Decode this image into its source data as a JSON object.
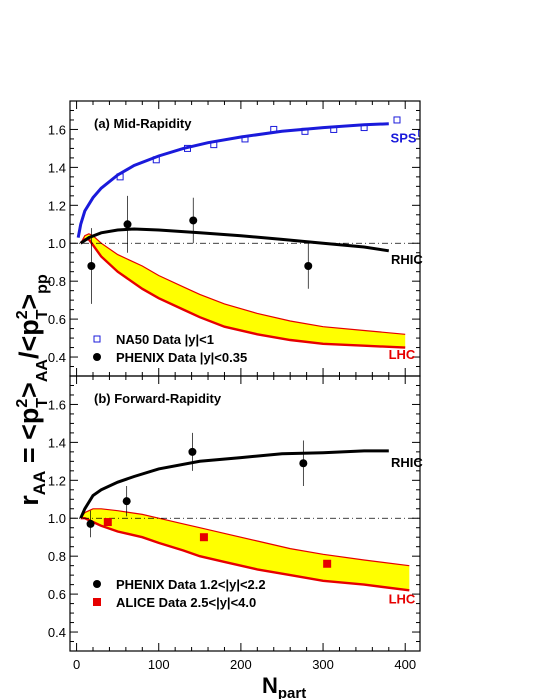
{
  "figure": {
    "y_axis_label": {
      "r": "r",
      "r_sub": "AA",
      "eq": " = <p",
      "sup1": "2",
      "sub1": "T",
      "mid": ">",
      "sub2": "AA",
      "slash": "/<p",
      "sup2": "2",
      "sub3": "T",
      "end": ">",
      "sub4": "pp"
    },
    "x_axis_label": {
      "main": "N",
      "sub": "part"
    }
  },
  "chart_data": [
    {
      "type": "line",
      "title": "(a) Mid-Rapidity",
      "xlim": [
        -8,
        418
      ],
      "ylim": [
        0.3,
        1.75
      ],
      "x_ticks": [
        0,
        100,
        200,
        300,
        400
      ],
      "y_ticks": [
        0.4,
        0.6,
        0.8,
        1.0,
        1.2,
        1.4,
        1.6
      ],
      "y_tick_labels": [
        "0.4",
        "0.6",
        "0.8",
        "1.0",
        "1.2",
        "1.4",
        "1.6"
      ],
      "x_tick_labels": [
        "0",
        "100",
        "200",
        "300",
        "400"
      ],
      "reference_line": 1.0,
      "lines": [
        {
          "name": "SPS",
          "color": "#1a1adb",
          "x": [
            2,
            5,
            10,
            20,
            30,
            50,
            70,
            100,
            130,
            160,
            200,
            250,
            300,
            350,
            380
          ],
          "y": [
            1.03,
            1.1,
            1.17,
            1.24,
            1.29,
            1.36,
            1.41,
            1.46,
            1.5,
            1.53,
            1.56,
            1.59,
            1.61,
            1.625,
            1.63
          ]
        },
        {
          "name": "RHIC",
          "color": "#000000",
          "x": [
            5,
            15,
            30,
            50,
            70,
            100,
            150,
            200,
            250,
            300,
            350,
            380
          ],
          "y": [
            1.0,
            1.03,
            1.055,
            1.07,
            1.075,
            1.07,
            1.055,
            1.04,
            1.02,
            1.0,
            0.98,
            0.96
          ]
        }
      ],
      "band": {
        "name": "LHC",
        "fill": "#ffff00",
        "edge": "#e60000",
        "x": [
          5,
          10,
          15,
          20,
          30,
          50,
          80,
          100,
          130,
          150,
          180,
          220,
          260,
          300,
          350,
          400
        ],
        "upper": [
          1.0,
          1.04,
          1.05,
          1.04,
          1.0,
          0.94,
          0.88,
          0.83,
          0.77,
          0.73,
          0.68,
          0.63,
          0.59,
          0.56,
          0.54,
          0.52
        ],
        "lower": [
          1.0,
          1.02,
          1.02,
          0.99,
          0.93,
          0.85,
          0.76,
          0.71,
          0.65,
          0.61,
          0.56,
          0.52,
          0.49,
          0.47,
          0.46,
          0.45
        ]
      },
      "points": [
        {
          "name": "NA50 Data |y|<1",
          "marker": "open-square",
          "color": "#1a1adb",
          "x": [
            53,
            97,
            135,
            167,
            205,
            240,
            278,
            313,
            350,
            390,
            420
          ],
          "y": [
            1.35,
            1.44,
            1.5,
            1.52,
            1.55,
            1.6,
            1.59,
            1.6,
            1.61,
            1.65,
            1.58
          ]
        },
        {
          "name": "PHENIX Data |y|<0.35",
          "marker": "filled-circle",
          "color": "#000000",
          "x": [
            18,
            62,
            142,
            282
          ],
          "y": [
            0.88,
            1.1,
            1.12,
            0.88
          ],
          "err": [
            0.2,
            0.15,
            0.12,
            0.12
          ]
        }
      ],
      "curve_labels": [
        {
          "text": "SPS",
          "color": "#1a1adb",
          "x": 398,
          "y": 1.53
        },
        {
          "text": "RHIC",
          "color": "#000000",
          "x": 402,
          "y": 0.89
        },
        {
          "text": "LHC",
          "color": "#e60000",
          "x": 396,
          "y": 0.39
        }
      ],
      "legend_placement": "bottom-left"
    },
    {
      "type": "line",
      "title": "(b) Forward-Rapidity",
      "xlim": [
        -8,
        418
      ],
      "ylim": [
        0.3,
        1.75
      ],
      "x_ticks": [
        0,
        100,
        200,
        300,
        400
      ],
      "x_tick_labels": [
        "0",
        "100",
        "200",
        "300",
        "400"
      ],
      "y_ticks": [
        0.4,
        0.6,
        0.8,
        1.0,
        1.2,
        1.4,
        1.6
      ],
      "y_tick_labels": [
        "0.4",
        "0.6",
        "0.8",
        "1.0",
        "1.2",
        "1.4",
        "1.6"
      ],
      "reference_line": 1.0,
      "lines": [
        {
          "name": "RHIC",
          "color": "#000000",
          "x": [
            5,
            10,
            20,
            30,
            50,
            70,
            100,
            150,
            200,
            250,
            300,
            350,
            380
          ],
          "y": [
            1.0,
            1.05,
            1.12,
            1.15,
            1.19,
            1.22,
            1.26,
            1.3,
            1.32,
            1.34,
            1.345,
            1.355,
            1.355
          ]
        }
      ],
      "band": {
        "name": "LHC",
        "fill": "#ffff00",
        "edge": "#e60000",
        "x": [
          5,
          10,
          15,
          20,
          30,
          50,
          80,
          100,
          130,
          150,
          180,
          220,
          260,
          300,
          350,
          405
        ],
        "upper": [
          1.0,
          1.03,
          1.04,
          1.05,
          1.05,
          1.04,
          1.02,
          1.0,
          0.97,
          0.95,
          0.92,
          0.88,
          0.84,
          0.81,
          0.78,
          0.75
        ],
        "lower": [
          1.0,
          1.0,
          0.99,
          0.98,
          0.96,
          0.93,
          0.9,
          0.87,
          0.83,
          0.8,
          0.77,
          0.73,
          0.7,
          0.67,
          0.65,
          0.62
        ]
      },
      "points": [
        {
          "name": "PHENIX Data 1.2<|y|<2.2",
          "marker": "filled-circle",
          "color": "#000000",
          "x": [
            17,
            61,
            141,
            276
          ],
          "y": [
            0.97,
            1.09,
            1.35,
            1.29
          ],
          "err": [
            0.07,
            0.08,
            0.1,
            0.12
          ]
        },
        {
          "name": "ALICE Data 2.5<|y|<4.0",
          "marker": "filled-square",
          "color": "#e60000",
          "x": [
            38,
            155,
            305
          ],
          "y": [
            0.98,
            0.9,
            0.76
          ]
        }
      ],
      "curve_labels": [
        {
          "text": "RHIC",
          "color": "#000000",
          "x": 402,
          "y": 1.27
        },
        {
          "text": "LHC",
          "color": "#e60000",
          "x": 396,
          "y": 0.55
        }
      ],
      "legend_placement": "bottom-left"
    }
  ]
}
